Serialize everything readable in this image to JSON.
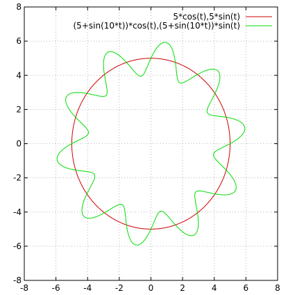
{
  "chart_data": {
    "type": "line",
    "title": "",
    "xlabel": "",
    "ylabel": "",
    "xlim": [
      -8,
      8
    ],
    "ylim": [
      -8,
      8
    ],
    "x_ticks": [
      -8,
      -6,
      -4,
      -2,
      0,
      2,
      4,
      6,
      8
    ],
    "y_ticks": [
      -8,
      -6,
      -4,
      -2,
      0,
      2,
      4,
      6,
      8
    ],
    "grid": true,
    "legend_position": "top-right",
    "series": [
      {
        "name": "5*cos(t),5*sin(t)",
        "color": "#cc0000",
        "parametric": {
          "r_base": 5,
          "amplitude": 0,
          "frequency": 0,
          "t_range": [
            0,
            6.283185307
          ]
        }
      },
      {
        "name": "(5+sin(10*t))*cos(t),(5+sin(10*t))*sin(t)",
        "color": "#00dd00",
        "parametric": {
          "r_base": 5,
          "amplitude": 1,
          "frequency": 10,
          "t_range": [
            0,
            6.283185307
          ]
        }
      }
    ]
  }
}
